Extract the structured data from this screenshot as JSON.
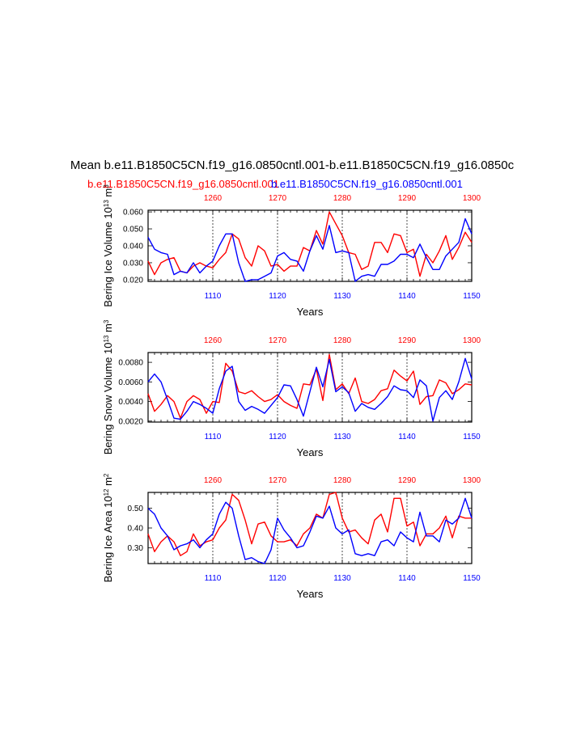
{
  "title": "Mean b.e11.B1850C5CN.f19_g16.0850cntl.001-b.e11.B1850C5CN.f19_g16.0850c",
  "case_labels": {
    "red": "b.e11.B1850C5CN.f19_g16.0850cntl.001",
    "blue": "b.e11.B1850C5CN.f19_g16.0850cntl.001",
    "red_color": "#ff0000",
    "blue_color": "#0000ff"
  },
  "chart_data": [
    {
      "type": "line",
      "ylabel": "Bering Ice Volume 10^13 m^3",
      "ylabel_main": "Bering Ice Volume 10",
      "ylabel_exp": "13",
      "ylabel_unit": " m",
      "ylabel_unit_exp": "3",
      "xlabel": "Years",
      "bottom_ticks": [
        "1110",
        "1120",
        "1130",
        "1140",
        "1150"
      ],
      "top_ticks": [
        "1260",
        "1270",
        "1280",
        "1290",
        "1300"
      ],
      "yticks": [
        "0.020",
        "0.030",
        "0.040",
        "0.050",
        "0.060"
      ],
      "ylim": [
        0.019,
        0.061
      ],
      "series": [
        {
          "name": "red",
          "color": "#ff0000",
          "x": [
            1100,
            1101,
            1102,
            1103,
            1104,
            1105,
            1106,
            1107,
            1108,
            1109,
            1110,
            1111,
            1112,
            1113,
            1114,
            1115,
            1116,
            1117,
            1118,
            1119,
            1120,
            1121,
            1122,
            1123,
            1124,
            1125,
            1126,
            1127,
            1128,
            1129,
            1130,
            1131,
            1132,
            1133,
            1134,
            1135,
            1136,
            1137,
            1138,
            1139,
            1140,
            1141,
            1142,
            1143,
            1144,
            1145,
            1146,
            1147,
            1148,
            1149,
            1150
          ],
          "values": [
            0.031,
            0.023,
            0.03,
            0.032,
            0.033,
            0.025,
            0.024,
            0.028,
            0.03,
            0.028,
            0.027,
            0.032,
            0.036,
            0.047,
            0.044,
            0.033,
            0.028,
            0.04,
            0.037,
            0.028,
            0.029,
            0.025,
            0.028,
            0.028,
            0.039,
            0.037,
            0.049,
            0.041,
            0.06,
            0.053,
            0.046,
            0.036,
            0.035,
            0.026,
            0.028,
            0.042,
            0.042,
            0.036,
            0.047,
            0.046,
            0.036,
            0.038,
            0.022,
            0.035,
            0.03,
            0.037,
            0.046,
            0.032,
            0.039,
            0.048,
            0.042
          ]
        },
        {
          "name": "blue",
          "color": "#0000ff",
          "x": [
            1100,
            1101,
            1102,
            1103,
            1104,
            1105,
            1106,
            1107,
            1108,
            1109,
            1110,
            1111,
            1112,
            1113,
            1114,
            1115,
            1116,
            1117,
            1118,
            1119,
            1120,
            1121,
            1122,
            1123,
            1124,
            1125,
            1126,
            1127,
            1128,
            1129,
            1130,
            1131,
            1132,
            1133,
            1134,
            1135,
            1136,
            1137,
            1138,
            1139,
            1140,
            1141,
            1142,
            1143,
            1144,
            1145,
            1146,
            1147,
            1148,
            1149,
            1150
          ],
          "values": [
            0.045,
            0.038,
            0.036,
            0.035,
            0.023,
            0.025,
            0.024,
            0.03,
            0.024,
            0.028,
            0.031,
            0.04,
            0.047,
            0.047,
            0.03,
            0.019,
            0.02,
            0.02,
            0.022,
            0.024,
            0.034,
            0.036,
            0.032,
            0.031,
            0.025,
            0.037,
            0.046,
            0.038,
            0.052,
            0.036,
            0.037,
            0.036,
            0.019,
            0.022,
            0.023,
            0.022,
            0.029,
            0.029,
            0.031,
            0.035,
            0.035,
            0.033,
            0.041,
            0.033,
            0.026,
            0.026,
            0.034,
            0.038,
            0.042,
            0.056,
            0.047
          ]
        }
      ]
    },
    {
      "type": "line",
      "ylabel": "Bering Snow Volume 10^13 m^3",
      "ylabel_main": "Bering Snow Volume 10",
      "ylabel_exp": "13",
      "ylabel_unit": " m",
      "ylabel_unit_exp": "3",
      "xlabel": "Years",
      "bottom_ticks": [
        "1110",
        "1120",
        "1130",
        "1140",
        "1150"
      ],
      "top_ticks": [
        "1260",
        "1270",
        "1280",
        "1290",
        "1300"
      ],
      "yticks": [
        "0.0020",
        "0.0040",
        "0.0060",
        "0.0080"
      ],
      "ylim": [
        0.0019,
        0.009
      ],
      "series": [
        {
          "name": "red",
          "color": "#ff0000",
          "x": [
            1100,
            1101,
            1102,
            1103,
            1104,
            1105,
            1106,
            1107,
            1108,
            1109,
            1110,
            1111,
            1112,
            1113,
            1114,
            1115,
            1116,
            1117,
            1118,
            1119,
            1120,
            1121,
            1122,
            1123,
            1124,
            1125,
            1126,
            1127,
            1128,
            1129,
            1130,
            1131,
            1132,
            1133,
            1134,
            1135,
            1136,
            1137,
            1138,
            1139,
            1140,
            1141,
            1142,
            1143,
            1144,
            1145,
            1146,
            1147,
            1148,
            1149,
            1150
          ],
          "values": [
            0.0048,
            0.003,
            0.0037,
            0.0046,
            0.004,
            0.0023,
            0.004,
            0.0046,
            0.0042,
            0.0028,
            0.004,
            0.0039,
            0.0079,
            0.0071,
            0.005,
            0.0048,
            0.0051,
            0.0045,
            0.004,
            0.0042,
            0.0047,
            0.004,
            0.0036,
            0.0033,
            0.0058,
            0.0057,
            0.0073,
            0.0041,
            0.0088,
            0.0052,
            0.0058,
            0.0048,
            0.0064,
            0.004,
            0.0038,
            0.0042,
            0.0051,
            0.0053,
            0.0072,
            0.0066,
            0.0061,
            0.0071,
            0.0037,
            0.0045,
            0.0046,
            0.0062,
            0.0059,
            0.0048,
            0.0052,
            0.0058,
            0.0057
          ]
        },
        {
          "name": "blue",
          "color": "#0000ff",
          "x": [
            1100,
            1101,
            1102,
            1103,
            1104,
            1105,
            1106,
            1107,
            1108,
            1109,
            1110,
            1111,
            1112,
            1113,
            1114,
            1115,
            1116,
            1117,
            1118,
            1119,
            1120,
            1121,
            1122,
            1123,
            1124,
            1125,
            1126,
            1127,
            1128,
            1129,
            1130,
            1131,
            1132,
            1133,
            1134,
            1135,
            1136,
            1137,
            1138,
            1139,
            1140,
            1141,
            1142,
            1143,
            1144,
            1145,
            1146,
            1147,
            1148,
            1149,
            1150
          ],
          "values": [
            0.006,
            0.0068,
            0.006,
            0.0042,
            0.0023,
            0.0022,
            0.003,
            0.004,
            0.0037,
            0.0033,
            0.0028,
            0.0053,
            0.0071,
            0.0076,
            0.004,
            0.0031,
            0.0035,
            0.0032,
            0.0028,
            0.0036,
            0.0044,
            0.0057,
            0.0056,
            0.0042,
            0.0025,
            0.005,
            0.0075,
            0.0055,
            0.0083,
            0.005,
            0.0055,
            0.0049,
            0.003,
            0.0038,
            0.0034,
            0.0032,
            0.0038,
            0.0045,
            0.0056,
            0.0052,
            0.0051,
            0.0044,
            0.0062,
            0.0056,
            0.002,
            0.0044,
            0.0051,
            0.0042,
            0.006,
            0.0084,
            0.0063
          ]
        }
      ]
    },
    {
      "type": "line",
      "ylabel": "Bering Ice Area 10^12 m^2",
      "ylabel_main": "Bering Ice Area 10",
      "ylabel_exp": "12",
      "ylabel_unit": " m",
      "ylabel_unit_exp": "2",
      "xlabel": "Years",
      "bottom_ticks": [
        "1110",
        "1120",
        "1130",
        "1140",
        "1150"
      ],
      "top_ticks": [
        "1260",
        "1270",
        "1280",
        "1290",
        "1300"
      ],
      "yticks": [
        "0.30",
        "0.40",
        "0.50"
      ],
      "ylim": [
        0.22,
        0.58
      ],
      "series": [
        {
          "name": "red",
          "color": "#ff0000",
          "x": [
            1100,
            1101,
            1102,
            1103,
            1104,
            1105,
            1106,
            1107,
            1108,
            1109,
            1110,
            1111,
            1112,
            1113,
            1114,
            1115,
            1116,
            1117,
            1118,
            1119,
            1120,
            1121,
            1122,
            1123,
            1124,
            1125,
            1126,
            1127,
            1128,
            1129,
            1130,
            1131,
            1132,
            1133,
            1134,
            1135,
            1136,
            1137,
            1138,
            1139,
            1140,
            1141,
            1142,
            1143,
            1144,
            1145,
            1146,
            1147,
            1148,
            1149,
            1150
          ],
          "values": [
            0.37,
            0.28,
            0.33,
            0.36,
            0.33,
            0.26,
            0.28,
            0.37,
            0.31,
            0.33,
            0.34,
            0.4,
            0.44,
            0.57,
            0.54,
            0.44,
            0.32,
            0.42,
            0.43,
            0.36,
            0.33,
            0.33,
            0.34,
            0.31,
            0.37,
            0.4,
            0.47,
            0.45,
            0.57,
            0.58,
            0.45,
            0.38,
            0.39,
            0.35,
            0.32,
            0.44,
            0.47,
            0.38,
            0.55,
            0.55,
            0.41,
            0.43,
            0.31,
            0.37,
            0.37,
            0.4,
            0.46,
            0.35,
            0.46,
            0.45,
            0.45
          ]
        },
        {
          "name": "blue",
          "color": "#0000ff",
          "x": [
            1100,
            1101,
            1102,
            1103,
            1104,
            1105,
            1106,
            1107,
            1108,
            1109,
            1110,
            1111,
            1112,
            1113,
            1114,
            1115,
            1116,
            1117,
            1118,
            1119,
            1120,
            1121,
            1122,
            1123,
            1124,
            1125,
            1126,
            1127,
            1128,
            1129,
            1130,
            1131,
            1132,
            1133,
            1134,
            1135,
            1136,
            1137,
            1138,
            1139,
            1140,
            1141,
            1142,
            1143,
            1144,
            1145,
            1146,
            1147,
            1148,
            1149,
            1150
          ],
          "values": [
            0.5,
            0.47,
            0.4,
            0.36,
            0.29,
            0.31,
            0.32,
            0.34,
            0.3,
            0.34,
            0.37,
            0.47,
            0.53,
            0.5,
            0.36,
            0.24,
            0.25,
            0.23,
            0.22,
            0.29,
            0.45,
            0.39,
            0.35,
            0.3,
            0.31,
            0.38,
            0.46,
            0.45,
            0.51,
            0.4,
            0.37,
            0.39,
            0.27,
            0.26,
            0.27,
            0.26,
            0.33,
            0.34,
            0.31,
            0.38,
            0.35,
            0.33,
            0.48,
            0.36,
            0.36,
            0.33,
            0.44,
            0.42,
            0.45,
            0.55,
            0.45
          ]
        }
      ]
    }
  ]
}
